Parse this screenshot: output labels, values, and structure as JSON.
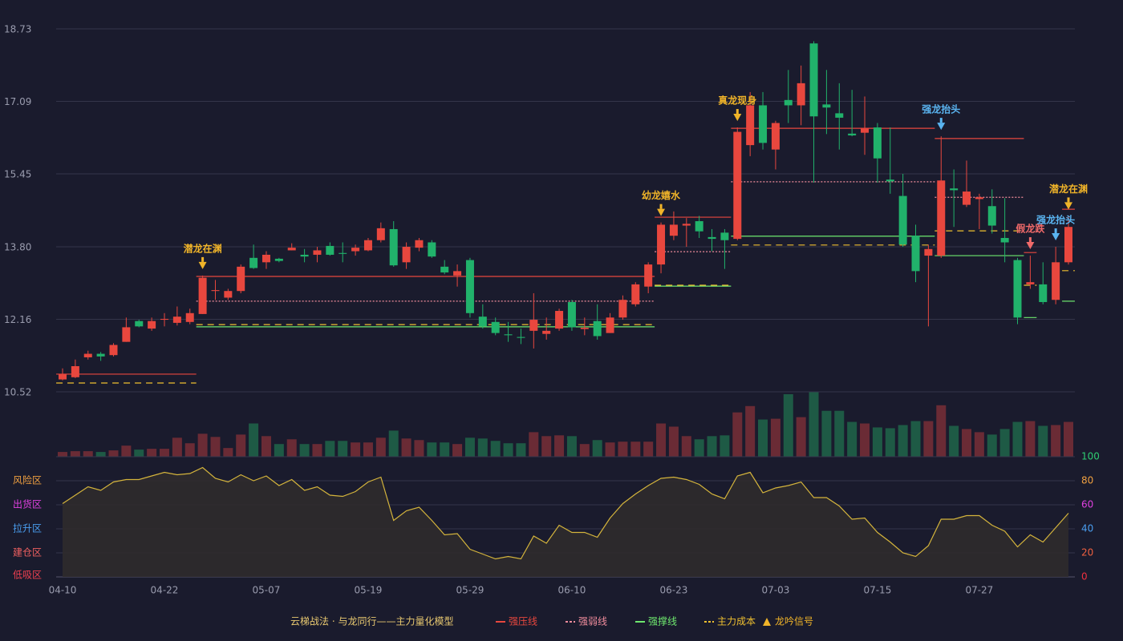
{
  "chart_data": [
    {
      "type": "candlestick",
      "ylim": [
        10.52,
        18.73
      ],
      "yticks": [
        10.52,
        12.16,
        {
          "value": 13.8,
          "label": "13.80"
        },
        15.45,
        17.09,
        18.73
      ],
      "grid": true,
      "up_color": "#e8473e",
      "down_color": "#21b26b",
      "open": [
        10.8,
        10.85,
        11.3,
        11.38,
        11.35,
        11.65,
        12.12,
        11.95,
        12.15,
        12.08,
        12.1,
        12.28,
        12.8,
        12.65,
        12.8,
        13.55,
        13.45,
        13.53,
        13.72,
        13.62,
        13.62,
        13.82,
        13.66,
        13.7,
        13.72,
        13.95,
        14.2,
        13.45,
        13.78,
        13.9,
        13.35,
        13.15,
        13.5,
        12.22,
        12.1,
        11.82,
        11.76,
        11.9,
        11.83,
        11.95,
        12.55,
        11.94,
        12.12,
        11.85,
        12.2,
        12.5,
        12.9,
        13.4,
        14.05,
        14.28,
        14.38,
        14.02,
        14.12,
        13.98,
        16.1,
        17.0,
        16.0,
        17.12,
        17.0,
        18.4,
        17.02,
        16.82,
        16.36,
        16.38,
        16.5,
        15.32,
        14.95,
        14.05,
        13.6,
        13.6,
        15.12,
        14.75,
        14.88,
        14.72,
        14.0,
        13.5,
        12.95,
        12.95,
        12.6,
        13.45
      ],
      "high": [
        11.05,
        11.25,
        11.45,
        11.42,
        11.62,
        12.2,
        12.15,
        12.2,
        12.3,
        12.45,
        12.4,
        13.15,
        13.05,
        12.85,
        13.4,
        13.85,
        13.7,
        13.55,
        13.88,
        13.75,
        13.8,
        13.9,
        13.9,
        13.85,
        14.0,
        14.35,
        14.38,
        13.9,
        14.0,
        13.95,
        13.5,
        13.4,
        13.55,
        12.5,
        12.2,
        12.1,
        11.95,
        12.75,
        12.2,
        12.4,
        12.6,
        12.2,
        12.5,
        12.3,
        12.7,
        13.0,
        13.45,
        14.35,
        14.6,
        14.45,
        14.5,
        14.2,
        14.2,
        16.5,
        17.3,
        17.3,
        16.65,
        17.8,
        17.9,
        18.45,
        17.8,
        17.5,
        17.35,
        17.2,
        16.6,
        16.5,
        15.45,
        14.3,
        13.85,
        16.3,
        15.55,
        15.75,
        15.0,
        15.1,
        14.9,
        13.55,
        13.6,
        13.45,
        13.8,
        14.5
      ],
      "low": [
        10.78,
        10.83,
        11.25,
        11.22,
        11.32,
        11.65,
        11.98,
        11.9,
        12.0,
        12.02,
        12.05,
        12.28,
        12.6,
        12.6,
        12.75,
        13.3,
        13.3,
        13.45,
        13.72,
        13.45,
        13.45,
        13.6,
        13.45,
        13.6,
        13.7,
        13.9,
        13.35,
        13.3,
        13.7,
        13.55,
        13.18,
        12.9,
        12.2,
        11.95,
        11.8,
        11.65,
        11.6,
        11.5,
        11.7,
        11.9,
        11.9,
        11.8,
        11.7,
        11.85,
        12.15,
        12.45,
        12.75,
        13.2,
        13.95,
        13.8,
        14.0,
        13.7,
        13.3,
        13.95,
        15.85,
        16.0,
        15.55,
        16.6,
        16.55,
        15.25,
        16.35,
        16.0,
        16.3,
        15.88,
        15.25,
        15.0,
        13.8,
        13.0,
        12.0,
        13.55,
        14.25,
        14.7,
        14.2,
        14.1,
        13.45,
        12.05,
        12.85,
        12.5,
        12.5,
        13.4
      ],
      "close": [
        10.92,
        11.1,
        11.38,
        11.32,
        11.58,
        11.98,
        12.0,
        12.12,
        12.17,
        12.22,
        12.3,
        13.1,
        12.82,
        12.8,
        13.35,
        13.32,
        13.62,
        13.48,
        13.78,
        13.58,
        13.72,
        13.62,
        13.64,
        13.78,
        13.95,
        14.22,
        13.38,
        13.8,
        13.95,
        13.58,
        13.22,
        13.25,
        12.3,
        12.0,
        11.85,
        11.8,
        11.74,
        12.15,
        11.9,
        12.35,
        11.98,
        11.97,
        11.78,
        12.2,
        12.6,
        12.95,
        13.4,
        14.3,
        14.3,
        14.32,
        14.15,
        13.98,
        13.95,
        16.4,
        17.0,
        16.15,
        16.6,
        17.0,
        17.5,
        16.75,
        16.95,
        16.72,
        16.32,
        16.48,
        15.8,
        15.28,
        13.85,
        13.25,
        13.75,
        15.3,
        15.08,
        15.05,
        14.92,
        14.28,
        13.9,
        12.2,
        13.0,
        12.55,
        13.45,
        14.25
      ],
      "levels": [
        {
          "name": "强压线",
          "color": "#e8473e",
          "style": "solid",
          "segments": [
            {
              "start": 0,
              "end": 10,
              "value": 10.92
            },
            {
              "start": 11,
              "end": 46,
              "value": 13.13
            },
            {
              "start": 47,
              "end": 52,
              "value": 14.47
            },
            {
              "start": 53,
              "end": 68,
              "value": 16.48
            },
            {
              "start": 69,
              "end": 75,
              "value": 16.25
            },
            {
              "start": 76,
              "end": 76,
              "value": 13.67
            },
            {
              "start": 79,
              "end": 79,
              "value": 14.65
            }
          ]
        },
        {
          "name": "强弱线",
          "color": "#f08c9c",
          "style": "dotted",
          "segments": [
            {
              "start": 11,
              "end": 46,
              "value": 12.57
            },
            {
              "start": 47,
              "end": 52,
              "value": 13.69
            },
            {
              "start": 53,
              "end": 68,
              "value": 15.27
            },
            {
              "start": 69,
              "end": 75,
              "value": 14.92
            }
          ]
        },
        {
          "name": "强撑线",
          "color": "#6ee86e",
          "style": "solid",
          "segments": [
            {
              "start": 11,
              "end": 46,
              "value": 11.99
            },
            {
              "start": 47,
              "end": 52,
              "value": 12.91
            },
            {
              "start": 53,
              "end": 68,
              "value": 14.04
            },
            {
              "start": 69,
              "end": 75,
              "value": 13.6
            },
            {
              "start": 76,
              "end": 76,
              "value": 12.2
            },
            {
              "start": 79,
              "end": 79,
              "value": 12.57
            }
          ]
        },
        {
          "name": "主力成本",
          "color": "#f0c030",
          "style": "dashed",
          "segments": [
            {
              "start": 0,
              "end": 10,
              "value": 10.72
            },
            {
              "start": 11,
              "end": 46,
              "value": 12.04
            },
            {
              "start": 47,
              "end": 52,
              "value": 12.93
            },
            {
              "start": 53,
              "end": 68,
              "value": 13.84
            },
            {
              "start": 69,
              "end": 75,
              "value": 14.16
            },
            {
              "start": 76,
              "end": 76,
              "value": 12.93
            },
            {
              "start": 79,
              "end": 79,
              "value": 13.26
            }
          ]
        }
      ],
      "signals": [
        {
          "label": "潜龙在渊",
          "index": 11,
          "color": "#f0b429"
        },
        {
          "label": "幼龙嬉水",
          "index": 47,
          "color": "#f0b429"
        },
        {
          "label": "真龙现身",
          "index": 53,
          "color": "#f0b429"
        },
        {
          "label": "强龙抬头",
          "index": 69,
          "color": "#5ab4f0"
        },
        {
          "label": "假龙跌",
          "index": 76,
          "color": "#f06a6a"
        },
        {
          "label": "强龙抬头",
          "index": 78,
          "color": "#5ab4f0"
        },
        {
          "label": "潜龙在渊",
          "index": 79,
          "color": "#f0b429"
        }
      ],
      "legend_title": "云梯战法 · 与龙同行——主力量化模型",
      "signal_legend": "龙吟信号",
      "signal_legend_color": "#f0b429"
    },
    {
      "type": "bar",
      "up_color": "#6a2b35",
      "down_color": "#1e5a45",
      "values": [
        6,
        7,
        7,
        6,
        8,
        14,
        9,
        10,
        10,
        24,
        17,
        29,
        25,
        11,
        28,
        42,
        26,
        16,
        22,
        16,
        16,
        20,
        20,
        18,
        18,
        24,
        33,
        23,
        21,
        18,
        18,
        16,
        24,
        23,
        20,
        17,
        17,
        31,
        26,
        27,
        26,
        16,
        21,
        18,
        19,
        19,
        19,
        42,
        38,
        26,
        22,
        26,
        27,
        56,
        64,
        47,
        48,
        79,
        50,
        82,
        58,
        58,
        44,
        42,
        37,
        36,
        40,
        45,
        45,
        65,
        39,
        35,
        31,
        28,
        35,
        44,
        45,
        39,
        40,
        44
      ]
    },
    {
      "type": "line",
      "color": "#d4b43c",
      "area_color": "#2f2b2c",
      "categories": [
        "04-10",
        null,
        null,
        null,
        null,
        null,
        null,
        null,
        "04-22",
        null,
        null,
        null,
        null,
        null,
        null,
        null,
        "05-07",
        null,
        null,
        null,
        null,
        null,
        null,
        null,
        "05-19",
        null,
        null,
        null,
        null,
        null,
        null,
        null,
        "05-29",
        null,
        null,
        null,
        null,
        null,
        null,
        null,
        "06-10",
        null,
        null,
        null,
        null,
        null,
        null,
        null,
        "06-23",
        null,
        null,
        null,
        null,
        null,
        null,
        null,
        "07-03",
        null,
        null,
        null,
        null,
        null,
        null,
        null,
        "07-15",
        null,
        null,
        null,
        null,
        null,
        null,
        null,
        "07-27",
        null,
        null,
        null,
        null,
        null,
        null,
        null
      ],
      "values": [
        61,
        68,
        75,
        72,
        79,
        81,
        81,
        84,
        87,
        85,
        86,
        91,
        82,
        79,
        85,
        80,
        84,
        76,
        81,
        72,
        75,
        68,
        67,
        71,
        79,
        83,
        47,
        55,
        58,
        47,
        35,
        36,
        23,
        19,
        15,
        17,
        15,
        34,
        28,
        43,
        37,
        37,
        33,
        49,
        61,
        69,
        76,
        82,
        83,
        81,
        77,
        69,
        65,
        84,
        87,
        70,
        74,
        76,
        79,
        66,
        66,
        59,
        48,
        49,
        37,
        29,
        20,
        17,
        26,
        48,
        48,
        51,
        51,
        43,
        38,
        25,
        35,
        29,
        41,
        53
      ],
      "ylim": [
        0,
        100
      ],
      "yticks": [
        0,
        20,
        40,
        60,
        80,
        100
      ],
      "ytick_colors": [
        "#f03040",
        "#f06040",
        "#4a9ef0",
        "#e040e0",
        "#f0a040",
        "#2ecc71"
      ],
      "grid": true,
      "zones": [
        {
          "label": "风险区",
          "color": "#f0a040"
        },
        {
          "label": "出货区",
          "color": "#e040e0"
        },
        {
          "label": "拉升区",
          "color": "#4a9ef0"
        },
        {
          "label": "建仓区",
          "color": "#f06060"
        },
        {
          "label": "低吸区",
          "color": "#f04050"
        }
      ]
    }
  ]
}
